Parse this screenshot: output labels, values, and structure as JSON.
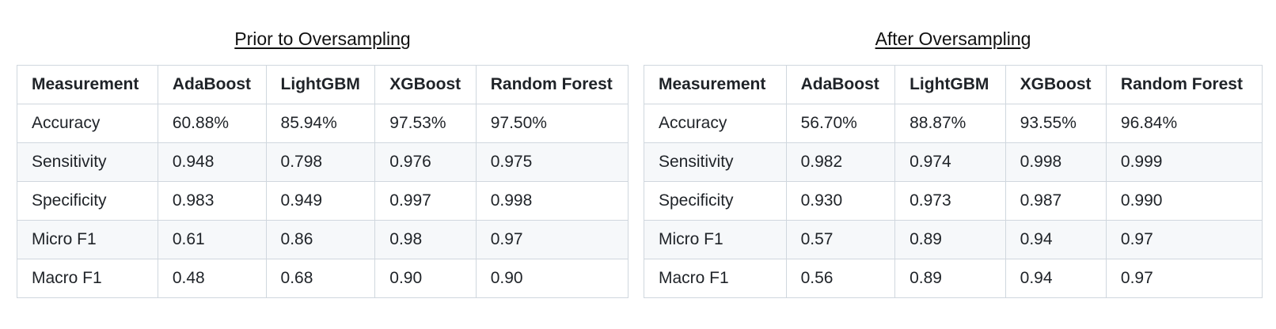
{
  "tables": [
    {
      "title": "Prior to Oversampling",
      "headers": [
        "Measurement",
        "AdaBoost",
        "LightGBM",
        "XGBoost",
        "Random Forest"
      ],
      "rows": [
        [
          "Accuracy",
          "60.88%",
          "85.94%",
          "97.53%",
          "97.50%"
        ],
        [
          "Sensitivity",
          "0.948",
          "0.798",
          "0.976",
          "0.975"
        ],
        [
          "Specificity",
          "0.983",
          "0.949",
          "0.997",
          "0.998"
        ],
        [
          "Micro F1",
          "0.61",
          "0.86",
          "0.98",
          "0.97"
        ],
        [
          "Macro F1",
          "0.48",
          "0.68",
          "0.90",
          "0.90"
        ]
      ]
    },
    {
      "title": "After Oversampling",
      "headers": [
        "Measurement",
        "AdaBoost",
        "LightGBM",
        "XGBoost",
        "Random Forest"
      ],
      "rows": [
        [
          "Accuracy",
          "56.70%",
          "88.87%",
          "93.55%",
          "96.84%"
        ],
        [
          "Sensitivity",
          "0.982",
          "0.974",
          "0.998",
          "0.999"
        ],
        [
          "Specificity",
          "0.930",
          "0.973",
          "0.987",
          "0.990"
        ],
        [
          "Micro F1",
          "0.57",
          "0.89",
          "0.94",
          "0.97"
        ],
        [
          "Macro F1",
          "0.56",
          "0.89",
          "0.94",
          "0.97"
        ]
      ]
    }
  ]
}
